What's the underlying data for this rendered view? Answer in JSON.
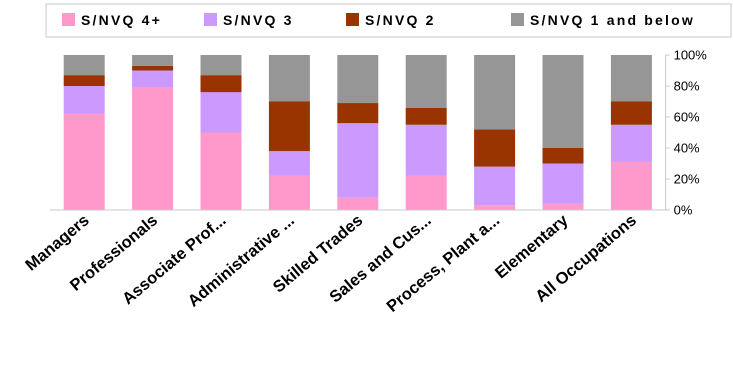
{
  "chart_data": {
    "type": "bar",
    "stacked": true,
    "categories": [
      "Managers",
      "Professionals",
      "Associate Prof...",
      "Administrative ...",
      "Skilled Trades",
      "Sales and Cus...",
      "Process, Plant a...",
      "Elementary",
      "All Occupations"
    ],
    "series": [
      {
        "name": "S/NVQ 4+",
        "color": "#ff99cc",
        "values": [
          62,
          79,
          50,
          22,
          8,
          22,
          3,
          4,
          31
        ]
      },
      {
        "name": "S/NVQ 3",
        "color": "#cc99ff",
        "values": [
          18,
          11,
          26,
          16,
          48,
          33,
          25,
          26,
          24
        ]
      },
      {
        "name": "S/NVQ 2",
        "color": "#993300",
        "values": [
          7,
          3,
          11,
          32,
          13,
          11,
          24,
          10,
          15
        ]
      },
      {
        "name": "S/NVQ 1 and below",
        "color": "#969696",
        "values": [
          13,
          7,
          13,
          30,
          31,
          34,
          48,
          60,
          30
        ]
      }
    ],
    "y_ticks": [
      "0%",
      "20%",
      "40%",
      "60%",
      "80%",
      "100%"
    ],
    "ylim": [
      0,
      100
    ],
    "y_axis_side": "right",
    "legend_position": "top",
    "title": "",
    "xlabel": "",
    "ylabel": ""
  }
}
